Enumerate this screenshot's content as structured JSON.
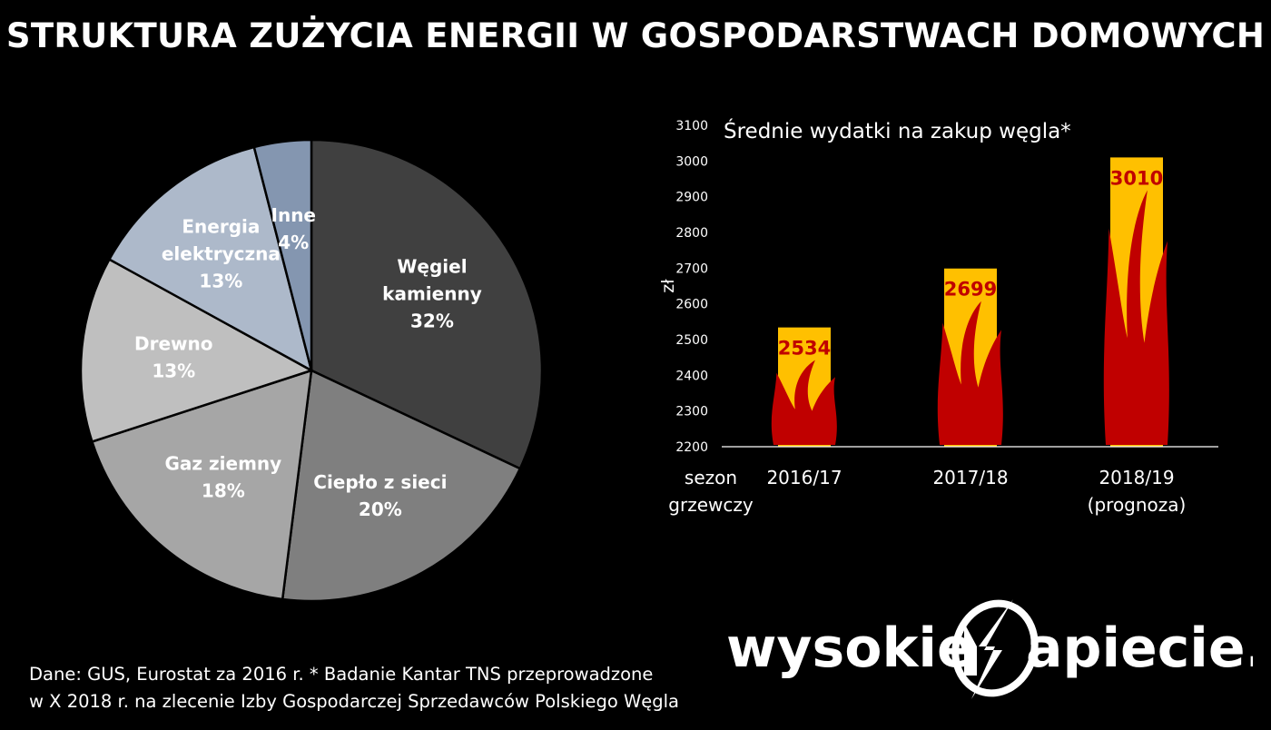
{
  "title": "STRUKTURA ZUŻYCIA ENERGII W GOSPODARSTWACH DOMOWYCH",
  "chart_data": [
    {
      "type": "pie",
      "slices": [
        {
          "label_lines": [
            "Węgiel",
            "kamienny"
          ],
          "value": 32,
          "value_label": "32%",
          "color": "#404040"
        },
        {
          "label_lines": [
            "Ciepło z sieci"
          ],
          "value": 20,
          "value_label": "20%",
          "color": "#7f7f7f"
        },
        {
          "label_lines": [
            "Gaz ziemny"
          ],
          "value": 18,
          "value_label": "18%",
          "color": "#a6a6a6"
        },
        {
          "label_lines": [
            "Drewno"
          ],
          "value": 13,
          "value_label": "13%",
          "color": "#bfbfbf"
        },
        {
          "label_lines": [
            "Energia",
            "elektryczna"
          ],
          "value": 13,
          "value_label": "13%",
          "color": "#adb9ca"
        },
        {
          "label_lines": [
            "Inne"
          ],
          "value": 4,
          "value_label": "4%",
          "color": "#8496b0"
        }
      ]
    },
    {
      "type": "bar",
      "title": "Średnie wydatki na zakup węgla*",
      "ylabel": "zł",
      "xlabel_lines": [
        "sezon",
        "grzewczy"
      ],
      "ylim": [
        2200,
        3100
      ],
      "yticks": [
        2200,
        2300,
        2400,
        2500,
        2600,
        2700,
        2800,
        2900,
        3000,
        3100
      ],
      "categories": [
        [
          "2016/17"
        ],
        [
          "2017/18"
        ],
        [
          "2018/19",
          "(prognoza)"
        ]
      ],
      "values": [
        2534,
        2699,
        3010
      ],
      "value_labels": [
        "2534",
        "2699",
        "3010"
      ],
      "bar_color": "#ffc000",
      "flame_color": "#c00000",
      "value_label_color": "#c00000"
    }
  ],
  "footer": {
    "line1": "Dane: GUS, Eurostat za 2016 r. * Badanie Kantar TNS przeprowadzone",
    "line2": "w X 2018 r. na zlecenie Izby Gospodarczej Sprzedawców Polskiego Węgla"
  },
  "logo": {
    "left_text": "wysokie",
    "right_text": "apiecie.pl"
  }
}
